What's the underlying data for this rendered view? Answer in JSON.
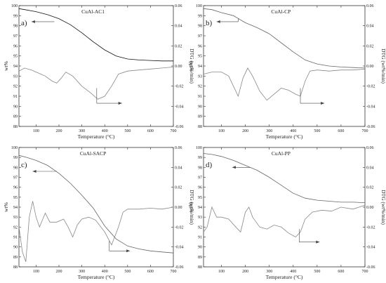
{
  "colors": {
    "tg": "#111111",
    "tg_light": "#666666",
    "dtg": "#888888",
    "frame": "#333333"
  },
  "chart_data": [
    {
      "type": "line",
      "panel": "a)",
      "title": "CuAl-AC1",
      "xlabel": "Temperature (°C)",
      "ylabel": "wt%",
      "ylabel_right": "DTG (wt%/min)",
      "xlim": [
        25,
        700
      ],
      "ylim": [
        88,
        100
      ],
      "ylim_right": [
        -0.06,
        0.06
      ],
      "x_ticks": [
        "100",
        "200",
        "300",
        "400",
        "500",
        "600",
        "700"
      ],
      "y_ticks": [
        "88",
        "89",
        "90",
        "91",
        "92",
        "93",
        "94",
        "95",
        "96",
        "97",
        "98",
        "99",
        "100"
      ],
      "y_right_ticks": [
        "-0.06",
        "-0.04",
        "-0.02",
        "0.00",
        "0.02",
        "0.04",
        "0.06"
      ],
      "arrows": [
        {
          "side": "left",
          "x": [
            180,
            80
          ],
          "y": [
            98.4,
            98.4
          ]
        },
        {
          "side": "right",
          "x": [
            365,
            475
          ],
          "y": [
            90.3,
            90.3
          ],
          "from_y": 91.8
        }
      ],
      "series": [
        {
          "axis": "left",
          "x": [
            25,
            50,
            100,
            150,
            200,
            250,
            300,
            350,
            400,
            450,
            500,
            550,
            600,
            650,
            700
          ],
          "y": [
            99.7,
            99.6,
            99.4,
            99.1,
            98.7,
            98.1,
            97.3,
            96.4,
            95.6,
            95.0,
            94.7,
            94.6,
            94.55,
            94.5,
            94.5
          ]
        },
        {
          "axis": "right",
          "x": [
            25,
            50,
            80,
            110,
            140,
            170,
            190,
            210,
            230,
            260,
            300,
            340,
            370,
            400,
            430,
            460,
            500,
            550,
            600,
            650,
            700
          ],
          "y": [
            -0.005,
            -0.002,
            -0.004,
            -0.007,
            -0.01,
            -0.015,
            -0.017,
            -0.012,
            -0.006,
            -0.01,
            -0.02,
            -0.027,
            -0.033,
            -0.03,
            -0.02,
            -0.008,
            -0.005,
            -0.004,
            -0.003,
            -0.002,
            -0.001
          ]
        }
      ]
    },
    {
      "type": "line",
      "panel": "b)",
      "title": "CuAl-CP",
      "xlabel": "Temperature (°C)",
      "ylabel": "wt%",
      "ylabel_right": "DTG (wt%/min)",
      "xlim": [
        25,
        700
      ],
      "ylim": [
        88,
        100
      ],
      "ylim_right": [
        -0.06,
        0.06
      ],
      "x_ticks": [
        "100",
        "200",
        "300",
        "400",
        "500",
        "600",
        "700"
      ],
      "y_ticks": [
        "88",
        "89",
        "90",
        "91",
        "92",
        "93",
        "94",
        "95",
        "96",
        "97",
        "98",
        "99",
        "100"
      ],
      "y_right_ticks": [
        "-0.06",
        "-0.04",
        "-0.02",
        "0.00",
        "0.02",
        "0.04",
        "0.06"
      ],
      "arrows": [
        {
          "side": "left",
          "x": [
            170,
            80
          ],
          "y": [
            98.4,
            98.4
          ],
          "from_y": 98.7
        },
        {
          "side": "right",
          "x": [
            430,
            530
          ],
          "y": [
            90.3,
            90.3
          ],
          "from_y": 91.8
        }
      ],
      "series": [
        {
          "axis": "left",
          "x": [
            25,
            60,
            100,
            150,
            200,
            250,
            300,
            350,
            400,
            450,
            500,
            550,
            600,
            650,
            700
          ],
          "y": [
            99.7,
            99.6,
            99.3,
            99.0,
            98.3,
            97.8,
            97.2,
            96.3,
            95.4,
            94.6,
            94.2,
            94.0,
            93.9,
            93.85,
            93.8
          ]
        },
        {
          "axis": "right",
          "x": [
            25,
            60,
            100,
            130,
            150,
            170,
            190,
            210,
            230,
            260,
            290,
            320,
            350,
            380,
            410,
            430,
            450,
            470,
            500,
            550,
            600,
            650,
            700
          ],
          "y": [
            -0.008,
            -0.006,
            -0.006,
            -0.01,
            -0.02,
            -0.03,
            -0.012,
            -0.002,
            -0.01,
            -0.025,
            -0.034,
            -0.028,
            -0.022,
            -0.024,
            -0.028,
            -0.03,
            -0.015,
            -0.005,
            -0.004,
            -0.005,
            -0.004,
            -0.004,
            -0.003
          ]
        }
      ]
    },
    {
      "type": "line",
      "panel": "c)",
      "title": "CuAl-SACP",
      "xlabel": "Temperature (°C)",
      "ylabel": "wt%",
      "ylabel_right": "DTG (wt%/min)",
      "xlim": [
        25,
        700
      ],
      "ylim": [
        88,
        100
      ],
      "ylim_right": [
        -0.06,
        0.06
      ],
      "x_ticks": [
        "100",
        "200",
        "300",
        "400",
        "500",
        "600",
        "700"
      ],
      "y_ticks": [
        "88",
        "89",
        "90",
        "91",
        "92",
        "93",
        "94",
        "95",
        "96",
        "97",
        "98",
        "99",
        "100"
      ],
      "y_right_ticks": [
        "-0.06",
        "-0.04",
        "-0.02",
        "0.00",
        "0.02",
        "0.04",
        "0.06"
      ],
      "arrows": [
        {
          "side": "left",
          "x": [
            190,
            85
          ],
          "y": [
            97.6,
            97.6
          ]
        },
        {
          "side": "right",
          "x": [
            420,
            510
          ],
          "y": [
            89.6,
            89.6
          ],
          "from_y": 90.6
        }
      ],
      "series": [
        {
          "axis": "left",
          "x": [
            25,
            60,
            100,
            150,
            200,
            250,
            300,
            350,
            400,
            450,
            500,
            550,
            600,
            650,
            700
          ],
          "y": [
            99.2,
            99.0,
            98.7,
            98.2,
            97.4,
            96.4,
            95.2,
            93.9,
            92.1,
            90.8,
            90.1,
            89.8,
            89.6,
            89.5,
            89.4
          ]
        },
        {
          "axis": "right",
          "x": [
            25,
            40,
            55,
            70,
            85,
            100,
            115,
            140,
            160,
            190,
            220,
            240,
            260,
            280,
            300,
            330,
            360,
            400,
            430,
            460,
            480,
            500,
            550,
            600,
            650,
            700
          ],
          "y": [
            -0.02,
            -0.045,
            -0.055,
            -0.01,
            0.006,
            -0.01,
            -0.02,
            -0.006,
            -0.015,
            -0.015,
            -0.012,
            -0.02,
            -0.03,
            -0.018,
            -0.012,
            -0.01,
            -0.013,
            -0.025,
            -0.038,
            -0.02,
            -0.005,
            -0.002,
            -0.002,
            -0.001,
            -0.002,
            0.0
          ]
        }
      ]
    },
    {
      "type": "line",
      "panel": "d)",
      "title": "CuAl-PP",
      "xlabel": "Temperature (°C)",
      "ylabel": "wt%",
      "ylabel_right": "DTG (wt%/min)",
      "xlim": [
        25,
        700
      ],
      "ylim": [
        88,
        100
      ],
      "ylim_right": [
        -0.06,
        0.06
      ],
      "x_ticks": [
        "100",
        "200",
        "300",
        "400",
        "500",
        "600",
        "700"
      ],
      "y_ticks": [
        "88",
        "89",
        "90",
        "91",
        "92",
        "93",
        "94",
        "95",
        "96",
        "97",
        "98",
        "99",
        "100"
      ],
      "y_right_ticks": [
        "-0.06",
        "-0.04",
        "-0.02",
        "0.00",
        "0.02",
        "0.04",
        "0.06"
      ],
      "arrows": [
        {
          "side": "left",
          "x": [
            220,
            145
          ],
          "y": [
            98.0,
            98.0
          ]
        },
        {
          "side": "right",
          "x": [
            425,
            510
          ],
          "y": [
            90.5,
            90.5
          ],
          "from_y": 91.8
        }
      ],
      "series": [
        {
          "axis": "left",
          "x": [
            25,
            60,
            100,
            150,
            200,
            250,
            300,
            350,
            400,
            450,
            500,
            550,
            600,
            650,
            700
          ],
          "y": [
            99.4,
            99.3,
            99.1,
            98.7,
            98.2,
            97.7,
            97.0,
            96.2,
            95.4,
            94.9,
            94.7,
            94.6,
            94.5,
            94.5,
            94.45
          ]
        },
        {
          "axis": "right",
          "x": [
            25,
            40,
            60,
            80,
            100,
            130,
            160,
            180,
            200,
            215,
            230,
            260,
            290,
            320,
            350,
            380,
            410,
            430,
            450,
            480,
            520,
            560,
            600,
            650,
            700
          ],
          "y": [
            -0.025,
            -0.02,
            0.0,
            -0.01,
            -0.01,
            -0.012,
            -0.02,
            -0.025,
            -0.005,
            0.0,
            -0.01,
            -0.02,
            -0.022,
            -0.018,
            -0.02,
            -0.026,
            -0.03,
            -0.025,
            -0.012,
            -0.005,
            -0.003,
            -0.004,
            0.0,
            -0.002,
            0.002
          ]
        }
      ]
    }
  ]
}
